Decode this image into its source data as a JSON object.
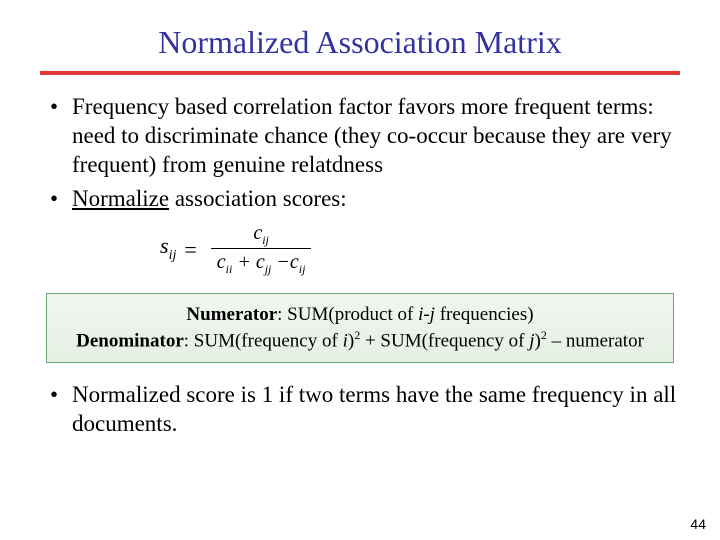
{
  "title": "Normalized Association Matrix",
  "bullets": {
    "b1": "Frequency based correlation factor favors more frequent terms: need to discriminate chance (they co-occur because they are very frequent) from genuine relatdness",
    "b2_underlined": "Normalize",
    "b2_rest": " association scores:",
    "b3": "Normalized score is 1 if two terms have the same frequency in all documents."
  },
  "formula": {
    "lhs_var": "s",
    "lhs_sub": "ij",
    "num_var": "c",
    "num_sub": "ij",
    "den_t1_var": "c",
    "den_t1_sub": "ii",
    "den_plus": "+",
    "den_t2_var": "c",
    "den_t2_sub": "jj",
    "den_minus": "−",
    "den_t3_var": "c",
    "den_t3_sub": "ij"
  },
  "box": {
    "l1_bold": "Numerator",
    "l1_rest_a": ": SUM(product of ",
    "l1_ij": "i-j",
    "l1_rest_b": " frequencies)",
    "l2_bold": "Denominator",
    "l2_rest_a": ": SUM(frequency of ",
    "l2_i": "i",
    "l2_rest_b": ")",
    "l2_sup": "2",
    "l2_rest_c": " + SUM(frequency of ",
    "l2_j": "j",
    "l2_rest_d": ")",
    "l2_rest_e": " – numerator"
  },
  "pagenum": "44",
  "colors": {
    "title": "#3232a0",
    "rule": "#e23a3a",
    "box_border": "#6aa56a",
    "box_bg_top": "#f0f6ef",
    "box_bg_bot": "#e6f0e4"
  },
  "typography": {
    "title_fontsize": 32,
    "body_fontsize": 23,
    "box_fontsize": 19,
    "pagenum_fontsize": 14
  }
}
